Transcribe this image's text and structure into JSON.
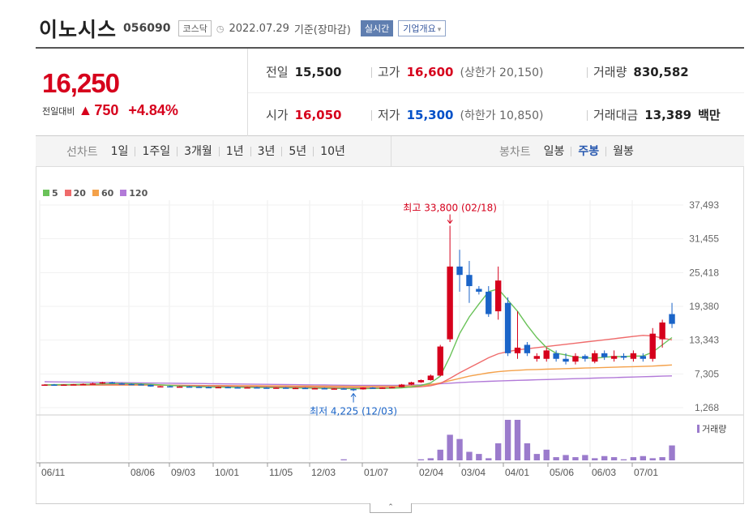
{
  "header": {
    "name": "이노시스",
    "code": "056090",
    "market": "코스닥",
    "date": "2022.07.29",
    "basis": "기준(장마감)",
    "realtime": "실시간",
    "overview": "기업개요"
  },
  "quote": {
    "price": "16,250",
    "change_label": "전일대비",
    "change": "750",
    "change_pct": "+4.84%",
    "prev_label": "전일",
    "prev": "15,500",
    "high_label": "고가",
    "high": "16,600",
    "upper_label": "(상한가 20,150)",
    "volume_label": "거래량",
    "volume": "830,582",
    "open_label": "시가",
    "open": "16,050",
    "low_label": "저가",
    "low": "15,300",
    "lower_label": "(하한가 10,850)",
    "amount_label": "거래대금",
    "amount": "13,389",
    "amount_unit": "백만"
  },
  "tabs": {
    "line_title": "선차트",
    "line_items": [
      "1일",
      "1주일",
      "3개월",
      "1년",
      "3년",
      "5년",
      "10년"
    ],
    "candle_title": "봉차트",
    "candle_items": [
      "일봉",
      "주봉",
      "월봉"
    ],
    "selected_candle": "주봉"
  },
  "colors": {
    "up": "#d6001c",
    "down": "#1a64c8",
    "ma5": "#6ac259",
    "ma20": "#ef6b6b",
    "ma60": "#f4a14a",
    "ma120": "#b27ad8",
    "volume": "#9b7bcc"
  },
  "chart_data": {
    "type": "candlestick",
    "legend": [
      "5",
      "20",
      "60",
      "120"
    ],
    "y_ticks": [
      "37,493",
      "31,455",
      "25,418",
      "19,380",
      "13,343",
      "7,305",
      "1,268"
    ],
    "ylim": [
      1268,
      37493
    ],
    "x_labels": [
      "06/11",
      "08/06",
      "09/03",
      "10/01",
      "11/05",
      "12/03",
      "01/07",
      "02/04",
      "03/04",
      "04/01",
      "05/06",
      "06/03",
      "07/01"
    ],
    "annotation_high": "최고 33,800 (02/18)",
    "annotation_low": "최저 4,225 (12/03)",
    "volume_label": "거래량",
    "candles": [
      [
        5300,
        5450,
        5250,
        5400
      ],
      [
        5400,
        5500,
        5300,
        5350
      ],
      [
        5350,
        5450,
        5250,
        5400
      ],
      [
        5400,
        5500,
        5300,
        5450
      ],
      [
        5450,
        5600,
        5350,
        5500
      ],
      [
        5500,
        5700,
        5400,
        5600
      ],
      [
        5600,
        5900,
        5500,
        5800
      ],
      [
        5800,
        5900,
        5550,
        5600
      ],
      [
        5600,
        5700,
        5400,
        5500
      ],
      [
        5500,
        5600,
        5350,
        5450
      ],
      [
        5450,
        5550,
        5300,
        5350
      ],
      [
        5350,
        5400,
        5000,
        5050
      ],
      [
        5050,
        5150,
        4950,
        5100
      ],
      [
        5100,
        5200,
        4950,
        5000
      ],
      [
        5000,
        5100,
        4900,
        5050
      ],
      [
        5050,
        5150,
        4950,
        5000
      ],
      [
        5000,
        5100,
        4850,
        4950
      ],
      [
        4950,
        5050,
        4850,
        4900
      ],
      [
        4900,
        5000,
        4800,
        4950
      ],
      [
        4950,
        5050,
        4850,
        4900
      ],
      [
        4900,
        5000,
        4800,
        4850
      ],
      [
        4850,
        4950,
        4750,
        4900
      ],
      [
        4900,
        5000,
        4800,
        4850
      ],
      [
        4850,
        4950,
        4750,
        4800
      ],
      [
        4800,
        4900,
        4700,
        4850
      ],
      [
        4850,
        4950,
        4700,
        4750
      ],
      [
        4750,
        4850,
        4650,
        4800
      ],
      [
        4800,
        4900,
        4650,
        4700
      ],
      [
        4700,
        4800,
        4600,
        4750
      ],
      [
        4750,
        4850,
        4600,
        4650
      ],
      [
        4650,
        4750,
        4550,
        4700
      ],
      [
        4700,
        4800,
        4550,
        4600
      ],
      [
        4600,
        4700,
        4225,
        4550
      ],
      [
        4550,
        4900,
        4500,
        4850
      ],
      [
        4850,
        4950,
        4700,
        4800
      ],
      [
        4800,
        4900,
        4700,
        4850
      ],
      [
        4850,
        5000,
        4750,
        4950
      ],
      [
        4950,
        5500,
        4900,
        5400
      ],
      [
        5400,
        5900,
        5300,
        5800
      ],
      [
        5800,
        6300,
        5700,
        6200
      ],
      [
        6200,
        7200,
        6100,
        7000
      ],
      [
        7000,
        12500,
        6900,
        12200
      ],
      [
        13500,
        33800,
        13000,
        26500
      ],
      [
        26500,
        29500,
        22000,
        25000
      ],
      [
        25000,
        27500,
        20000,
        23000
      ],
      [
        22500,
        23000,
        21500,
        22000
      ],
      [
        22000,
        23000,
        17500,
        18000
      ],
      [
        18500,
        26500,
        17000,
        24000
      ],
      [
        20000,
        21000,
        10500,
        11000
      ],
      [
        11000,
        18500,
        10000,
        12000
      ],
      [
        12500,
        13000,
        10500,
        11000
      ],
      [
        10000,
        11000,
        9500,
        10500
      ],
      [
        10000,
        12000,
        9500,
        11500
      ],
      [
        11000,
        11500,
        9500,
        10000
      ],
      [
        10000,
        11000,
        9000,
        9500
      ],
      [
        9500,
        11000,
        9000,
        10500
      ],
      [
        10500,
        10800,
        9500,
        10000
      ],
      [
        9500,
        11500,
        9200,
        11000
      ],
      [
        11000,
        11500,
        9800,
        10300
      ],
      [
        10000,
        11500,
        9500,
        10500
      ],
      [
        10500,
        11000,
        9800,
        10200
      ],
      [
        10000,
        11500,
        9500,
        11000
      ],
      [
        10500,
        11000,
        9500,
        10000
      ],
      [
        10000,
        15500,
        9500,
        14500
      ],
      [
        13500,
        17000,
        12000,
        16500
      ],
      [
        18000,
        20000,
        15500,
        16250
      ]
    ],
    "volumes": [
      0,
      0,
      0,
      0,
      0,
      0,
      0,
      0,
      0,
      0,
      0,
      0,
      0,
      0,
      0,
      0,
      0,
      0,
      0,
      0,
      0,
      0,
      0,
      0,
      0,
      0,
      0,
      0,
      0,
      0,
      0,
      1,
      0,
      0,
      0,
      0,
      0,
      0,
      0,
      1,
      2,
      10,
      24,
      20,
      8,
      6,
      2,
      16,
      38,
      38,
      16,
      6,
      10,
      3,
      5,
      3,
      5,
      2,
      4,
      3,
      1,
      3,
      4,
      2,
      3,
      14
    ],
    "ma5": [
      5350,
      5380,
      5400,
      5420,
      5450,
      5480,
      5520,
      5560,
      5580,
      5560,
      5520,
      5440,
      5350,
      5250,
      5150,
      5080,
      5020,
      4980,
      4960,
      4940,
      4920,
      4900,
      4880,
      4860,
      4840,
      4820,
      4800,
      4780,
      4760,
      4740,
      4720,
      4700,
      4680,
      4680,
      4700,
      4720,
      4760,
      4820,
      4980,
      5240,
      5700,
      6900,
      10400,
      14500,
      17500,
      19800,
      22000,
      22500,
      20500,
      18500,
      16000,
      13800,
      12000,
      11000,
      10700,
      10300,
      10200,
      10100,
      10300,
      10400,
      10400,
      10500,
      10500,
      11200,
      12500,
      13800
    ],
    "ma20": [
      5300,
      5310,
      5320,
      5330,
      5340,
      5350,
      5360,
      5370,
      5380,
      5380,
      5370,
      5350,
      5320,
      5290,
      5260,
      5230,
      5200,
      5170,
      5140,
      5110,
      5080,
      5060,
      5040,
      5020,
      5000,
      4980,
      4960,
      4940,
      4920,
      4900,
      4880,
      4860,
      4840,
      4840,
      4850,
      4860,
      4870,
      4880,
      4930,
      5000,
      5200,
      5600,
      6500,
      7500,
      8400,
      9300,
      10200,
      10900,
      11300,
      11600,
      11800,
      12000,
      12200,
      12400,
      12600,
      12800,
      13000,
      13200,
      13400,
      13600,
      13800,
      14000,
      14200,
      14100,
      13700,
      13400
    ],
    "ma60": [
      5300,
      5300,
      5300,
      5300,
      5300,
      5300,
      5300,
      5300,
      5300,
      5300,
      5300,
      5290,
      5280,
      5270,
      5260,
      5250,
      5240,
      5230,
      5220,
      5210,
      5200,
      5190,
      5180,
      5170,
      5160,
      5150,
      5140,
      5130,
      5120,
      5110,
      5100,
      5090,
      5080,
      5080,
      5080,
      5090,
      5100,
      5110,
      5160,
      5220,
      5400,
      5700,
      6100,
      6500,
      6900,
      7200,
      7500,
      7700,
      7850,
      7950,
      8050,
      8100,
      8150,
      8200,
      8250,
      8300,
      8350,
      8400,
      8450,
      8500,
      8550,
      8600,
      8650,
      8700,
      8800,
      8900
    ],
    "ma120": [
      5900,
      5880,
      5860,
      5840,
      5820,
      5800,
      5780,
      5760,
      5740,
      5720,
      5700,
      5680,
      5660,
      5640,
      5620,
      5600,
      5580,
      5560,
      5540,
      5520,
      5500,
      5480,
      5460,
      5440,
      5420,
      5400,
      5380,
      5360,
      5340,
      5320,
      5300,
      5280,
      5260,
      5250,
      5250,
      5250,
      5260,
      5270,
      5300,
      5350,
      5450,
      5550,
      5650,
      5750,
      5850,
      5920,
      5980,
      6040,
      6100,
      6150,
      6200,
      6250,
      6300,
      6350,
      6400,
      6450,
      6500,
      6550,
      6600,
      6650,
      6700,
      6750,
      6800,
      6850,
      6900,
      6950
    ]
  }
}
